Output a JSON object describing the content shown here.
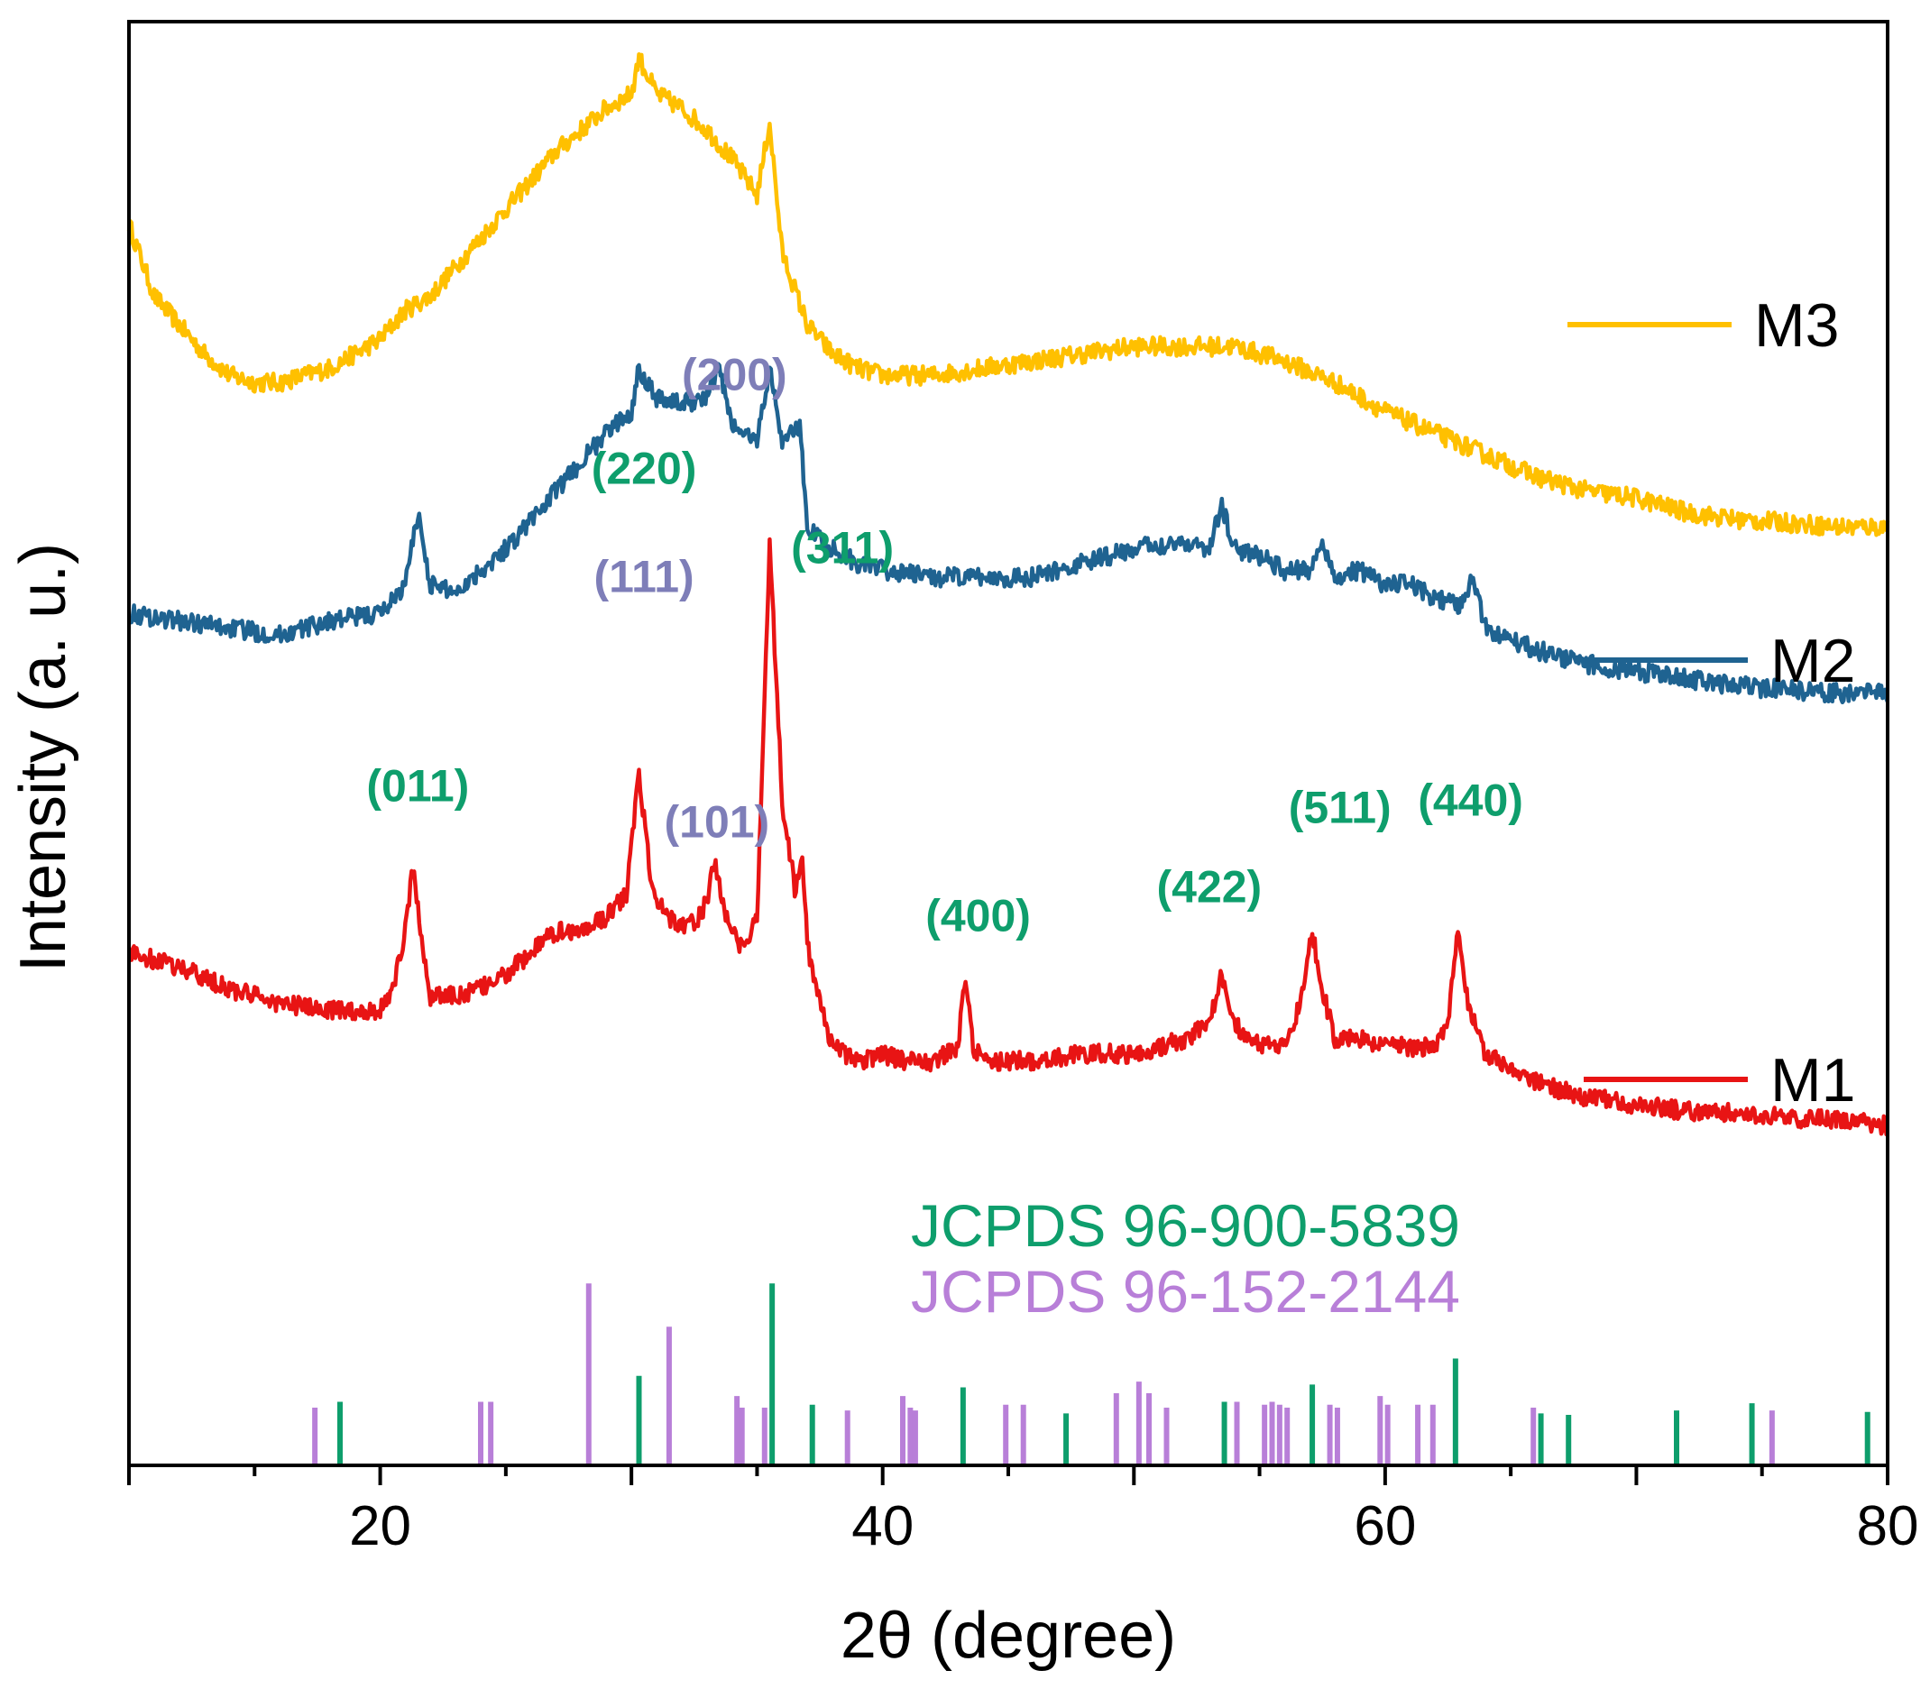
{
  "chart_data": {
    "type": "line",
    "title": "",
    "xlabel": "2θ (degree)",
    "ylabel": "Intensity (a. u.)",
    "xlim": [
      10,
      80
    ],
    "ylim": [
      0,
      100
    ],
    "xticks": [
      20,
      40,
      60,
      80
    ],
    "grid": false,
    "legend_position": "right",
    "series": [
      {
        "name": "M3",
        "color": "#FFC000",
        "x": [
          10,
          11,
          12,
          13,
          14,
          15,
          16,
          17,
          18,
          19,
          20,
          21,
          22,
          23,
          24,
          25,
          26,
          27,
          28,
          29,
          30,
          30.3,
          31,
          32,
          33,
          34,
          35,
          35.5,
          36,
          37,
          38,
          39,
          40,
          42,
          44,
          46,
          48,
          50,
          52,
          54,
          56,
          58,
          60,
          62,
          64,
          66,
          68,
          70,
          72,
          74,
          76,
          78,
          80
        ],
        "y": [
          86,
          81,
          79,
          77,
          75.5,
          75,
          75,
          75.5,
          76,
          77,
          78,
          80,
          81,
          83,
          85,
          87,
          89,
          91,
          92.5,
          94,
          95,
          97.5,
          95,
          94,
          92.5,
          90.5,
          88,
          93,
          84,
          79,
          77,
          76,
          75.5,
          75.5,
          76,
          76.5,
          77,
          77.5,
          77.5,
          77.5,
          76.5,
          75,
          73,
          71.5,
          70,
          68.5,
          67.5,
          67,
          66,
          65.5,
          65.3,
          65,
          65
        ]
      },
      {
        "name": "M2",
        "color": "#1F6391",
        "x": [
          10,
          12,
          14,
          16,
          18,
          20,
          21,
          21.5,
          22,
          23,
          24,
          25,
          26,
          27,
          28,
          29,
          30,
          30.3,
          31,
          32,
          33,
          33.5,
          34,
          35,
          35.5,
          36,
          36.7,
          37,
          38,
          39,
          40,
          42,
          44,
          46,
          48,
          50,
          52,
          53,
          53.5,
          54,
          55,
          56,
          57,
          57.5,
          58,
          59,
          60,
          61,
          62,
          63,
          63.5,
          64,
          66,
          68,
          70,
          72,
          74,
          76,
          78,
          80
        ],
        "y": [
          59,
          58.5,
          58,
          57.5,
          58.5,
          59,
          61,
          66,
          61,
          60.5,
          62,
          63.5,
          65.5,
          67.5,
          69.5,
          71.5,
          73,
          76,
          74,
          73.5,
          74,
          76,
          72,
          71,
          76,
          71,
          72,
          65,
          63.5,
          62.5,
          62,
          61.5,
          61.5,
          61.5,
          62.5,
          63.5,
          64,
          63.5,
          66.5,
          63.5,
          63,
          62,
          62,
          64,
          61.5,
          62,
          61,
          61,
          60,
          59.5,
          61.5,
          58,
          56.5,
          55.5,
          55,
          54.5,
          54,
          53.7,
          53.5,
          53.5
        ]
      },
      {
        "name": "M1",
        "color": "#E81414",
        "x": [
          10,
          12,
          14,
          16,
          18,
          20,
          20.5,
          21,
          21.3,
          21.6,
          22,
          23,
          24,
          25,
          26,
          27,
          28,
          29,
          29.8,
          30.3,
          30.8,
          31.5,
          32,
          32.5,
          33,
          33.3,
          33.6,
          34,
          34.5,
          35,
          35.5,
          36,
          36.5,
          36.8,
          37,
          37.5,
          38,
          39,
          40,
          41,
          42,
          43,
          43.3,
          43.6,
          44,
          46,
          48,
          50,
          52,
          53,
          53.5,
          54,
          55,
          56,
          56.6,
          57.1,
          57.5,
          58,
          59,
          60,
          61,
          62,
          62.5,
          62.9,
          63.3,
          64,
          66,
          68,
          70,
          72,
          74,
          76,
          78,
          80
        ],
        "y": [
          35.5,
          34.5,
          33,
          32,
          31.5,
          31.5,
          33,
          37,
          41.5,
          37,
          32.5,
          32.5,
          33,
          34,
          35.5,
          37,
          37,
          38,
          39.5,
          48,
          40,
          38,
          37.5,
          37.5,
          39,
          42,
          39,
          37,
          35.5,
          38,
          64,
          46,
          40,
          42,
          36,
          32,
          29,
          28,
          28.5,
          28,
          28,
          29,
          34,
          29,
          28,
          28,
          28.5,
          28.5,
          29.5,
          30.5,
          34,
          30.5,
          29,
          29,
          32,
          37,
          33,
          29.5,
          29.5,
          29,
          29,
          29,
          31,
          37,
          32,
          28.5,
          26.5,
          25.5,
          25,
          24.5,
          24.5,
          24,
          24,
          23.5
        ]
      }
    ],
    "reference_patterns": [
      {
        "name": "JCPDS 96-900-5839",
        "color": "#0E9E6C",
        "positions": [
          18.4,
          30.3,
          35.6,
          37.2,
          43.2,
          47.3,
          53.6,
          57.1,
          62.8,
          66.2,
          67.3,
          71.6,
          74.6,
          79.2
        ],
        "heights": [
          4.4,
          6.2,
          12.6,
          4.2,
          5.4,
          3.6,
          4.4,
          5.6,
          7.4,
          3.6,
          3.5,
          3.8,
          4.3,
          3.7
        ]
      },
      {
        "name": "JCPDS 96-152-2144",
        "color": "#B87FD8",
        "positions": [
          17.4,
          24.0,
          24.4,
          28.3,
          31.5,
          34.2,
          34.4,
          35.3,
          38.6,
          40.8,
          41.1,
          41.3,
          44.9,
          45.6,
          49.3,
          50.2,
          50.6,
          51.3,
          54.1,
          55.2,
          55.5,
          55.8,
          56.1,
          57.8,
          58.1,
          59.8,
          60.1,
          61.3,
          61.9,
          65.9,
          75.4
        ],
        "heights": [
          4.0,
          4.4,
          4.4,
          12.6,
          9.6,
          4.8,
          4.0,
          4.0,
          3.8,
          4.8,
          4.0,
          3.8,
          4.2,
          4.2,
          5.0,
          5.8,
          5.0,
          4.0,
          4.4,
          4.2,
          4.4,
          4.2,
          4.0,
          4.2,
          4.0,
          4.8,
          4.2,
          4.2,
          4.2,
          4.0,
          3.8
        ]
      }
    ],
    "annotations": [
      {
        "text": "(011)",
        "x": 21.5,
        "y": 46,
        "color": "#0E9E6C"
      },
      {
        "text": "(220)",
        "x": 30.5,
        "y": 68,
        "color": "#0E9E6C"
      },
      {
        "text": "(111)",
        "x": 30.5,
        "y": 60.5,
        "color": "#7E7EB8"
      },
      {
        "text": "(200)",
        "x": 34.1,
        "y": 74.5,
        "color": "#7E7EB8"
      },
      {
        "text": "(101)",
        "x": 33.4,
        "y": 43.5,
        "color": "#7E7EB8"
      },
      {
        "text": "(311)",
        "x": 38.4,
        "y": 62.5,
        "color": "#0E9E6C"
      },
      {
        "text": "(400)",
        "x": 43.8,
        "y": 37,
        "color": "#0E9E6C"
      },
      {
        "text": "(422)",
        "x": 53.0,
        "y": 39,
        "color": "#0E9E6C"
      },
      {
        "text": "(511)",
        "x": 58.2,
        "y": 44.5,
        "color": "#0E9E6C"
      },
      {
        "text": "(440)",
        "x": 63.4,
        "y": 45,
        "color": "#0E9E6C"
      }
    ]
  }
}
